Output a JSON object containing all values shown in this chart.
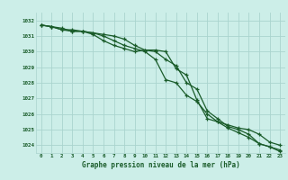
{
  "title": "Graphe pression niveau de la mer (hPa)",
  "background_color": "#cceee8",
  "grid_color": "#aad4ce",
  "line_color": "#1a5c2a",
  "x_labels": [
    "0",
    "1",
    "2",
    "3",
    "4",
    "5",
    "6",
    "7",
    "8",
    "9",
    "10",
    "11",
    "12",
    "13",
    "14",
    "15",
    "16",
    "17",
    "18",
    "19",
    "20",
    "21",
    "22",
    "23"
  ],
  "ylim": [
    1023.5,
    1032.5
  ],
  "yticks": [
    1024,
    1025,
    1026,
    1027,
    1028,
    1029,
    1030,
    1031,
    1032
  ],
  "series1": [
    1031.7,
    1031.6,
    1031.5,
    1031.3,
    1031.3,
    1031.2,
    1031.1,
    1031.0,
    1030.8,
    1030.4,
    1030.1,
    1030.0,
    1029.5,
    1029.1,
    1028.0,
    1027.6,
    1026.2,
    1025.7,
    1025.2,
    1025.0,
    1024.7,
    1024.1,
    1023.9,
    1023.6
  ],
  "series2": [
    1031.7,
    1031.6,
    1031.4,
    1031.3,
    1031.3,
    1031.2,
    1031.0,
    1030.7,
    1030.4,
    1030.2,
    1030.0,
    1029.5,
    1028.2,
    1028.0,
    1027.2,
    1026.8,
    1026.0,
    1025.5,
    1025.1,
    1024.8,
    1024.5,
    1024.1,
    1023.9,
    1023.7
  ],
  "series3": [
    1031.7,
    1031.6,
    1031.4,
    1031.4,
    1031.3,
    1031.1,
    1030.7,
    1030.4,
    1030.2,
    1030.0,
    1030.1,
    1030.1,
    1030.0,
    1028.9,
    1028.5,
    1026.9,
    1025.7,
    1025.5,
    1025.3,
    1025.1,
    1025.0,
    1024.7,
    1024.2,
    1024.0
  ],
  "figsize": [
    3.2,
    2.0
  ],
  "dpi": 100
}
